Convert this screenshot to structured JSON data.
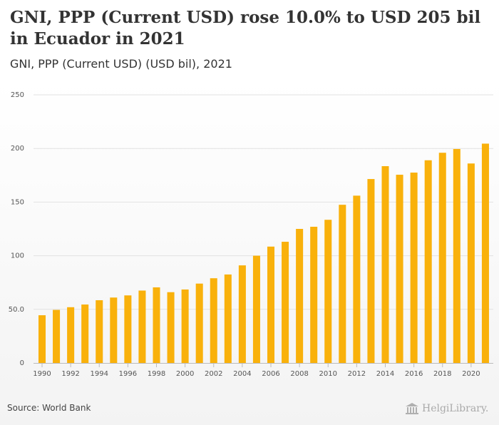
{
  "header": {
    "title": "GNI, PPP (Current USD) rose 10.0% to USD 205 bil in Ecuador in 2021",
    "subtitle": "GNI, PPP (Current USD) (USD bil), 2021"
  },
  "footer": {
    "source": "Source: World Bank",
    "logo_text": "HelgiLibrary."
  },
  "colors": {
    "bar": "#f9b10b",
    "grid": "#e2e2e2",
    "axis": "#bbbbbb"
  },
  "chart_data": {
    "type": "bar",
    "title": "GNI, PPP (Current USD) rose 10.0% to USD 205 bil in Ecuador in 2021",
    "subtitle": "GNI, PPP (Current USD) (USD bil), 2021",
    "xlabel": "",
    "ylabel": "",
    "ylim": [
      0,
      250
    ],
    "yticks": [
      0,
      50,
      100,
      150,
      200,
      250
    ],
    "ytick_labels": [
      "0",
      "50.0",
      "100",
      "150",
      "200",
      "250"
    ],
    "x_tick_labels": [
      "1990",
      "1992",
      "1994",
      "1996",
      "1998",
      "2000",
      "2002",
      "2004",
      "2006",
      "2008",
      "2010",
      "2012",
      "2014",
      "2016",
      "2018",
      "2020"
    ],
    "grid": true,
    "legend": "none",
    "categories": [
      "1990",
      "1991",
      "1992",
      "1993",
      "1994",
      "1995",
      "1996",
      "1997",
      "1998",
      "1999",
      "2000",
      "2001",
      "2002",
      "2003",
      "2004",
      "2005",
      "2006",
      "2007",
      "2008",
      "2009",
      "2010",
      "2011",
      "2012",
      "2013",
      "2014",
      "2015",
      "2016",
      "2017",
      "2018",
      "2019",
      "2020",
      "2021"
    ],
    "values": [
      44.5,
      49.5,
      52.0,
      54.5,
      58.5,
      61.0,
      63.0,
      67.5,
      70.5,
      66.0,
      68.5,
      74.0,
      79.0,
      82.5,
      91.0,
      100.0,
      108.5,
      113.0,
      125.0,
      127.0,
      133.5,
      147.5,
      156.0,
      171.5,
      183.5,
      175.5,
      177.5,
      189.0,
      196.0,
      199.5,
      186.0,
      204.5
    ]
  }
}
